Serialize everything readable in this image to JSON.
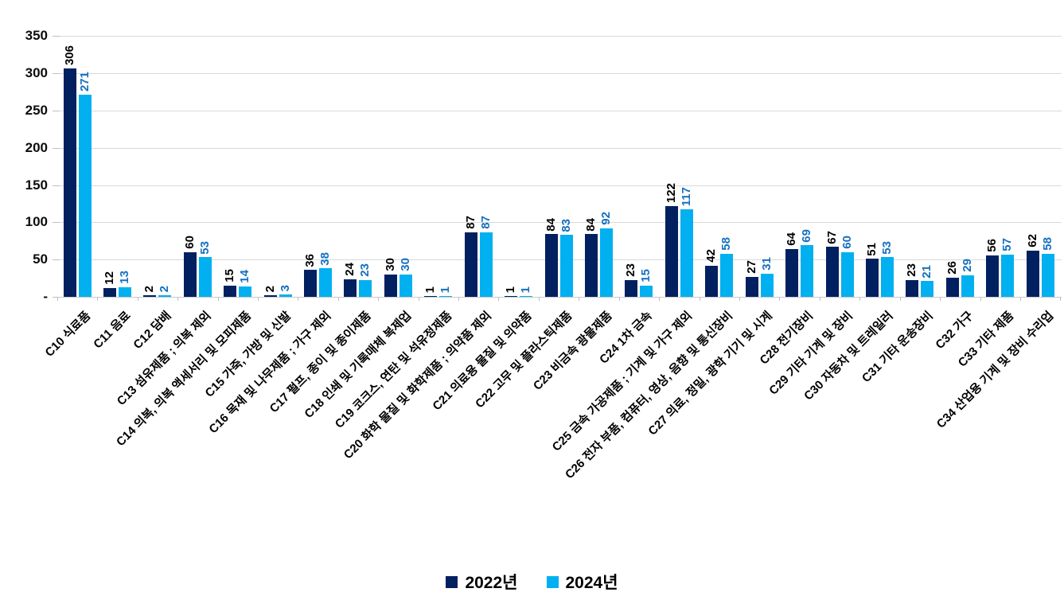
{
  "chart_data": {
    "type": "bar",
    "title": "",
    "categories": [
      "C10 식료품",
      "C11 음료",
      "C12 담배",
      "C13 섬유제품 ; 의복 제외",
      "C14 의복, 의복 액세서리 및 모피제품",
      "C15 가죽, 가방 및 신발",
      "C16 목재 및 나무제품 ; 가구 제외",
      "C17 펄프, 종이 및 종이제품",
      "C18 인쇄 및 기록매체 복제업",
      "C19 코크스, 연탄 및 석유정제품",
      "C20 화학 물질 및 화학제품 ; 의약품 제외",
      "C21 의료용 물질 및 의약품",
      "C22 고무 및 플라스틱제품",
      "C23 비금속 광물제품",
      "C24 1차 금속",
      "C25 금속 가공제품 ; 기계 및 가구 제외",
      "C26 전자 부품, 컴퓨터, 영상, 음향 및 통신장비",
      "C27 의료, 정밀, 광학 기기 및 시계",
      "C28 전기장비",
      "C29 기타 기계 및 장비",
      "C30 자동차 및 트레일러",
      "C31 기타 운송장비",
      "C32 가구",
      "C33 기타 제품",
      "C34 산업용 기계 및 장비 수리업"
    ],
    "series": [
      {
        "name": "2022년",
        "color": "#002060",
        "label_color": "#000000",
        "values": [
          306,
          12,
          2,
          60,
          15,
          2,
          36,
          24,
          30,
          1,
          87,
          1,
          84,
          84,
          23,
          122,
          42,
          27,
          64,
          67,
          51,
          23,
          26,
          56,
          62
        ]
      },
      {
        "name": "2024년",
        "color": "#00b0f0",
        "label_color": "#1470c0",
        "values": [
          271,
          13,
          2,
          53,
          14,
          3,
          38,
          23,
          30,
          1,
          87,
          1,
          83,
          92,
          15,
          117,
          58,
          31,
          69,
          60,
          53,
          21,
          29,
          57,
          58
        ]
      }
    ],
    "xlabel": "",
    "ylabel": "",
    "ylim": [
      0,
      350
    ],
    "yticks": [
      {
        "value": 0,
        "label": "-"
      },
      {
        "value": 50,
        "label": "50"
      },
      {
        "value": 100,
        "label": "100"
      },
      {
        "value": 150,
        "label": "150"
      },
      {
        "value": 200,
        "label": "200"
      },
      {
        "value": 250,
        "label": "250"
      },
      {
        "value": 300,
        "label": "300"
      },
      {
        "value": 350,
        "label": "350"
      }
    ],
    "grid": true,
    "grid_color": "#d9d9d9",
    "legend_position": "bottom"
  }
}
